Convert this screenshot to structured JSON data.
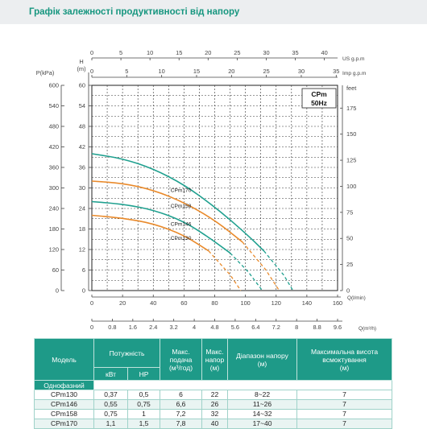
{
  "heading": "Графік залежності продуктивності від напору",
  "chart_data": {
    "type": "line",
    "title_box": [
      "CPm",
      "50Hz"
    ],
    "axes": {
      "bottom_flow_l_per_min": {
        "label": "Q(l/min)",
        "ticks": [
          0,
          20,
          40,
          60,
          80,
          100,
          120,
          140,
          160
        ],
        "range": [
          0,
          160
        ]
      },
      "bottom_flow_m3_per_h": {
        "label": "Q(m³/h)",
        "ticks": [
          "0",
          "0.8",
          "1.6",
          "2.4",
          "3.2",
          "4",
          "4.8",
          "5.6",
          "6.4",
          "7.2",
          "8",
          "8.8",
          "9.6"
        ]
      },
      "top_us_gpm": {
        "label": "US g.p.m",
        "ticks": [
          0,
          5,
          10,
          15,
          20,
          25,
          30,
          35,
          40
        ]
      },
      "top_imp_gpm": {
        "label": "Imp g.p.m",
        "ticks": [
          0,
          5,
          10,
          15,
          20,
          25,
          30,
          35
        ]
      },
      "left_head_m": {
        "label": "H (m)",
        "label_h": "H",
        "label_m": "(m)",
        "ticks": [
          0,
          6,
          12,
          18,
          24,
          30,
          36,
          42,
          48,
          54,
          60
        ],
        "range": [
          0,
          60
        ]
      },
      "left_pressure_kpa": {
        "label": "P(kPa)",
        "ticks": [
          0,
          60,
          120,
          180,
          240,
          300,
          360,
          420,
          480,
          540,
          600
        ]
      },
      "right_head_feet": {
        "label": "feet",
        "ticks": [
          0,
          25,
          50,
          75,
          100,
          125,
          150,
          175
        ]
      }
    },
    "grid": true,
    "series": [
      {
        "name": "CPm170",
        "color": "#1fa08f",
        "points": [
          [
            0,
            40
          ],
          [
            20,
            38.6
          ],
          [
            40,
            35.6
          ],
          [
            60,
            31
          ],
          [
            80,
            24.5
          ],
          [
            100,
            16.8
          ],
          [
            112,
            11.6
          ]
        ],
        "dashed_points": [
          [
            112,
            11.6
          ],
          [
            125,
            4.5
          ],
          [
            131,
            0
          ]
        ]
      },
      {
        "name": "CPm158",
        "color": "#e98a2b",
        "points": [
          [
            0,
            32
          ],
          [
            20,
            31.4
          ],
          [
            40,
            29.4
          ],
          [
            60,
            25.8
          ],
          [
            80,
            20.6
          ],
          [
            98,
            14.2
          ]
        ],
        "dashed_points": [
          [
            98,
            14.2
          ],
          [
            113,
            6.2
          ],
          [
            122,
            0
          ]
        ]
      },
      {
        "name": "CPm146",
        "color": "#1fa08f",
        "points": [
          [
            0,
            26
          ],
          [
            20,
            25.3
          ],
          [
            40,
            23.6
          ],
          [
            60,
            20.2
          ],
          [
            76,
            15.6
          ],
          [
            90,
            11
          ]
        ],
        "dashed_points": [
          [
            90,
            11
          ],
          [
            102,
            5.4
          ],
          [
            111,
            0
          ]
        ]
      },
      {
        "name": "CPm130",
        "color": "#e98a2b",
        "points": [
          [
            0,
            22
          ],
          [
            20,
            21.2
          ],
          [
            40,
            19.6
          ],
          [
            60,
            16.2
          ],
          [
            76,
            11.6
          ]
        ],
        "dashed_points": [
          [
            76,
            11.6
          ],
          [
            90,
            4.6
          ],
          [
            97,
            0
          ]
        ]
      }
    ]
  },
  "table": {
    "headers": {
      "model": "Модель",
      "power": "Потужність",
      "max_flow": [
        "Макс.",
        "подача",
        "(м³/год)"
      ],
      "max_head": [
        "Макс.",
        "напор",
        "(м)"
      ],
      "head_range": [
        "Діапазон напору",
        "(м)"
      ],
      "max_suction": [
        "Максимальна висота",
        "всмоктування",
        "(м)"
      ],
      "single_phase": "Однофазний",
      "kw": "кВт",
      "hp": "HP"
    },
    "rows": [
      {
        "model": "CPm130",
        "kw": "0,37",
        "hp": "0,5",
        "flow": "6",
        "head": "22",
        "range": "8~22",
        "suction": "7"
      },
      {
        "model": "CPm146",
        "kw": "0,55",
        "hp": "0,75",
        "flow": "6,6",
        "head": "26",
        "range": "11~26",
        "suction": "7"
      },
      {
        "model": "CPm158",
        "kw": "0,75",
        "hp": "1",
        "flow": "7,2",
        "head": "32",
        "range": "14~32",
        "suction": "7"
      },
      {
        "model": "CPm170",
        "kw": "1,1",
        "hp": "1,5",
        "flow": "7,8",
        "head": "40",
        "range": "17~40",
        "suction": "7"
      }
    ]
  }
}
